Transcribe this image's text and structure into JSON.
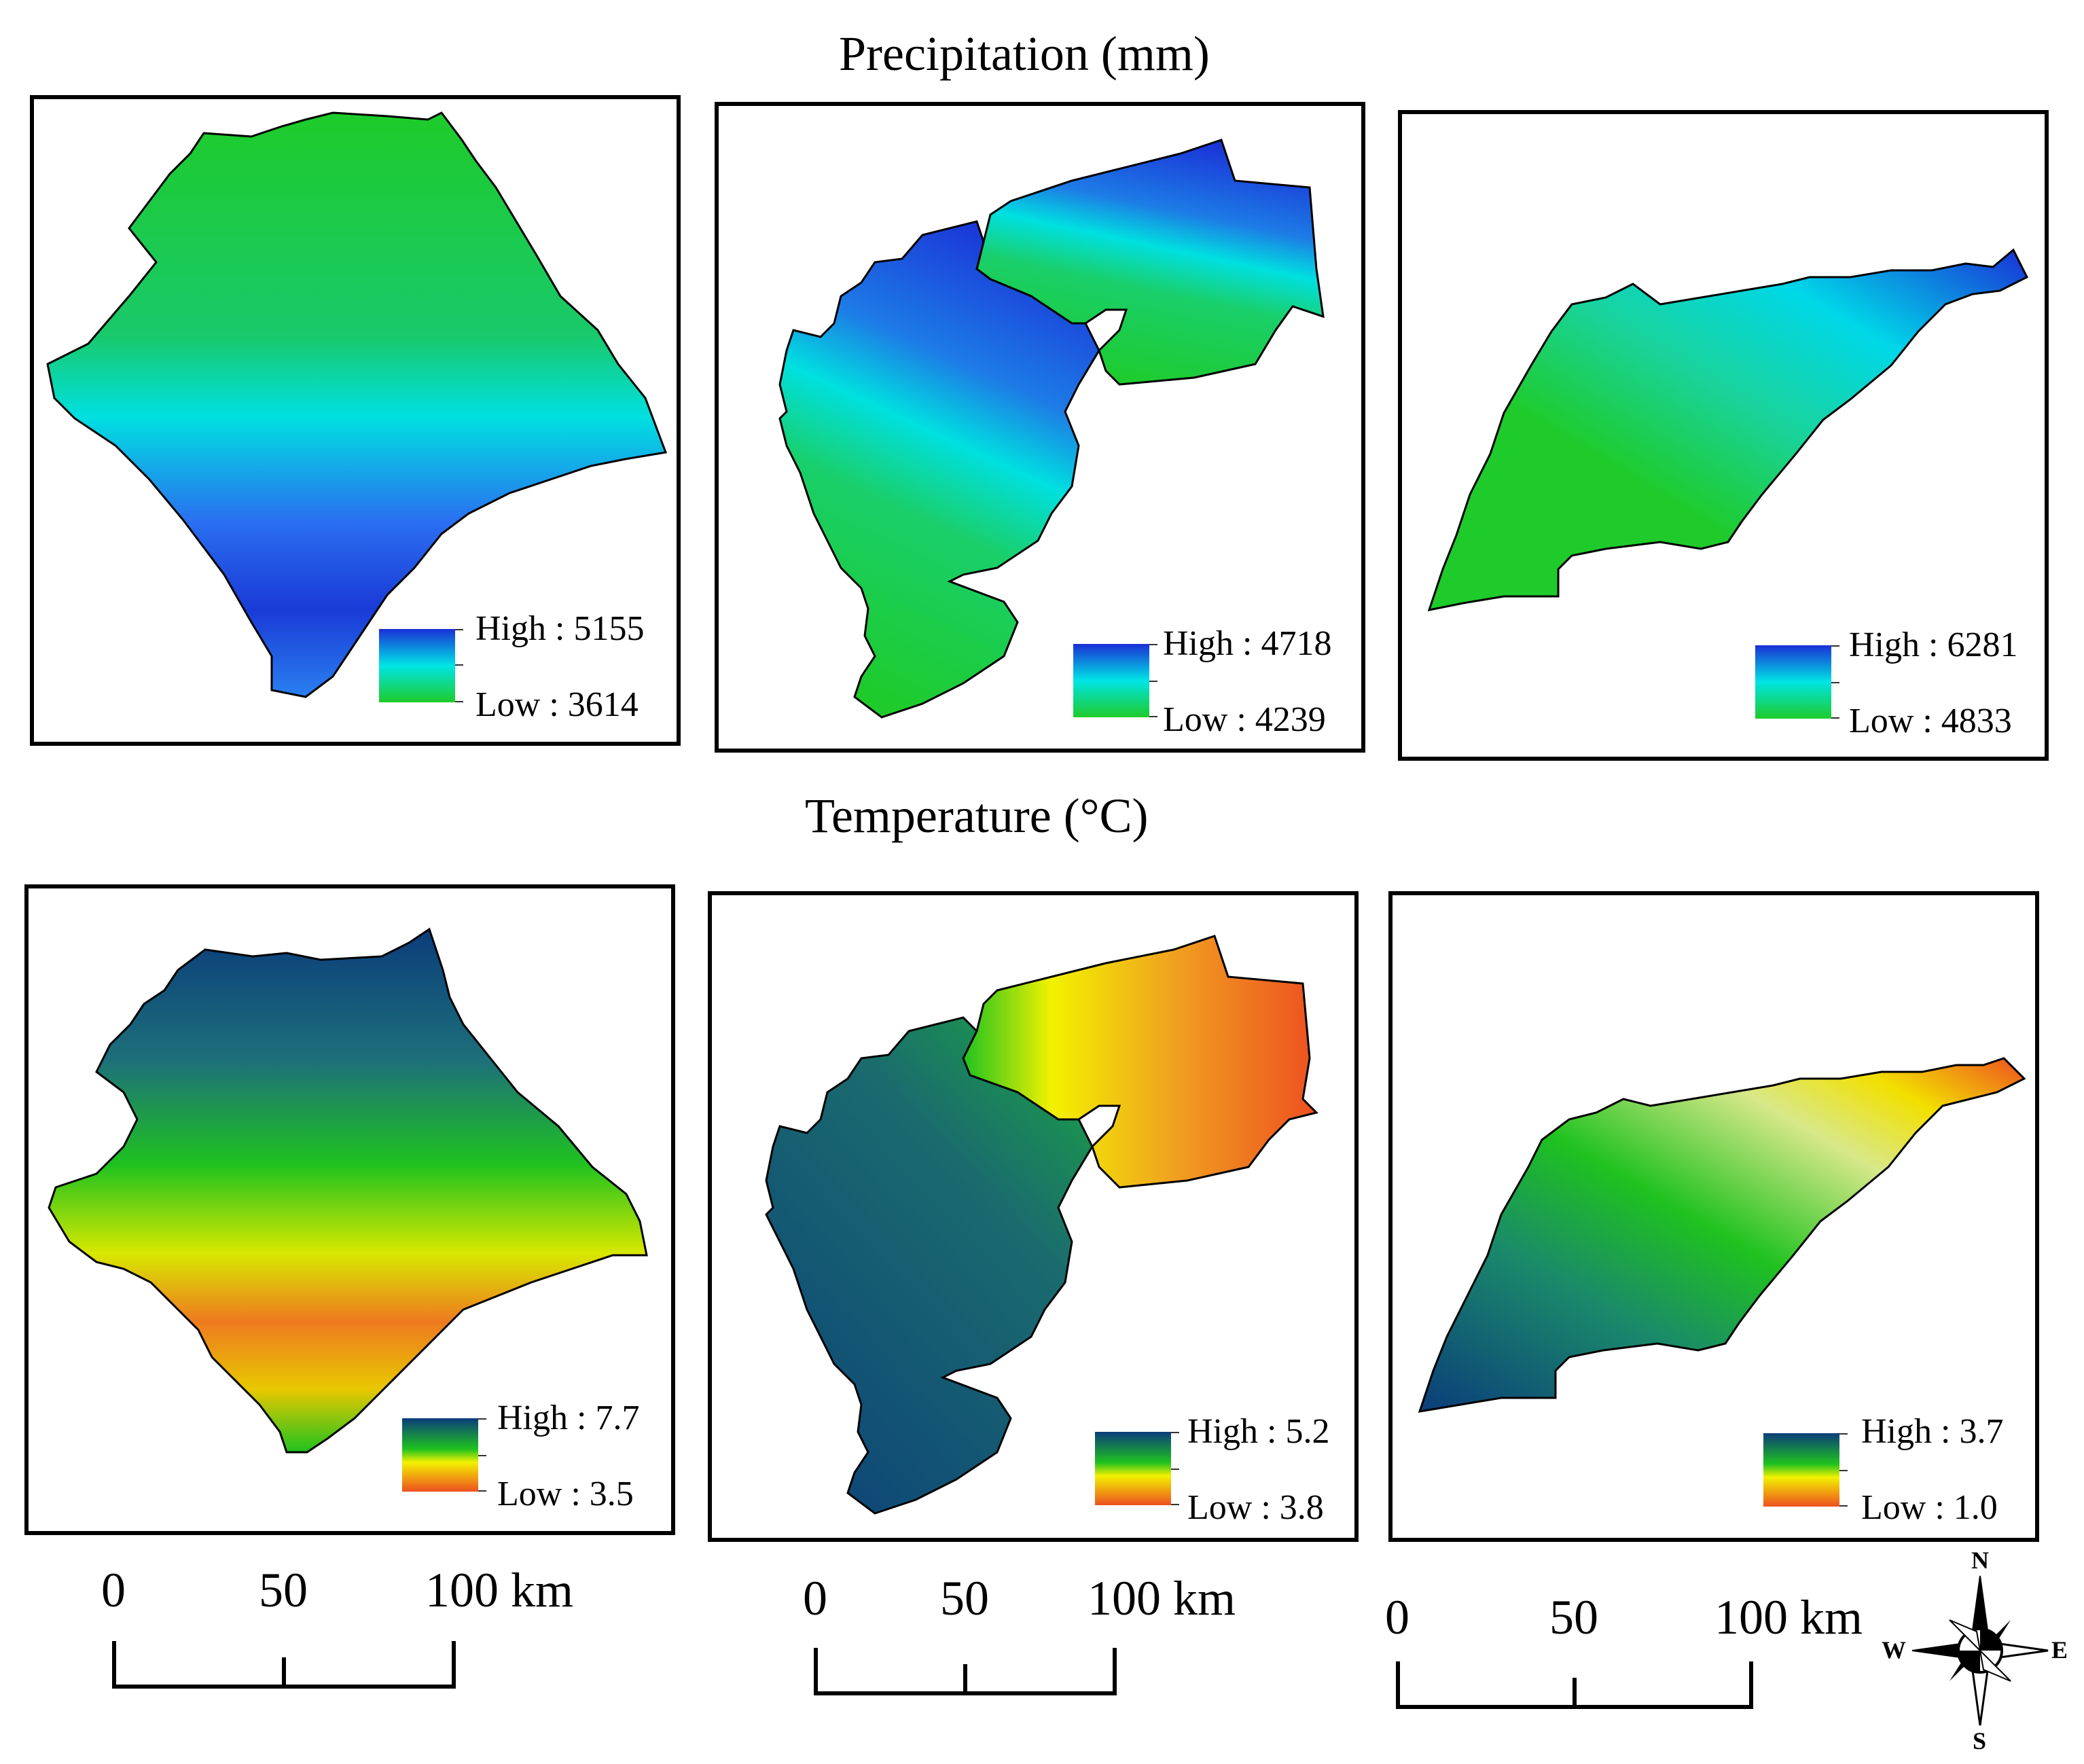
{
  "titles": {
    "precipitation": "Precipitation (mm)",
    "temperature": "Temperature (°C)"
  },
  "precipitation_maps": [
    {
      "high_label": "High : 5155",
      "low_label": "Low : 3614",
      "high_value": 5155,
      "low_value": 3614
    },
    {
      "high_label": "High : 4718",
      "low_label": "Low : 4239",
      "high_value": 4718,
      "low_value": 4239
    },
    {
      "high_label": "High : 6281",
      "low_label": "Low : 4833",
      "high_value": 6281,
      "low_value": 4833
    }
  ],
  "temperature_maps": [
    {
      "high_label": "High : 7.7",
      "low_label": "Low : 3.5",
      "high_value": 7.7,
      "low_value": 3.5
    },
    {
      "high_label": "High : 5.2",
      "low_label": "Low : 3.8",
      "high_value": 5.2,
      "low_value": 3.8
    },
    {
      "high_label": "High : 3.7",
      "low_label": "Low : 1.0",
      "high_value": 3.7,
      "low_value": 1.0
    }
  ],
  "scale_bars": [
    {
      "t0": "0",
      "t1": "50",
      "t2": "100 km"
    },
    {
      "t0": "0",
      "t1": "50",
      "t2": "100 km"
    },
    {
      "t0": "0",
      "t1": "50",
      "t2": "100 km"
    }
  ],
  "compass": {
    "n": "N",
    "s": "S",
    "e": "E",
    "w": "W"
  },
  "colors": {
    "precip_high": "#1a2fd6",
    "precip_mid": "#00e5e5",
    "precip_low": "#1ecb2a",
    "temp_high": "#0b3d7a",
    "temp_mid": "#1fc21f",
    "temp_yellow": "#f2f200",
    "temp_low": "#ee5020"
  }
}
